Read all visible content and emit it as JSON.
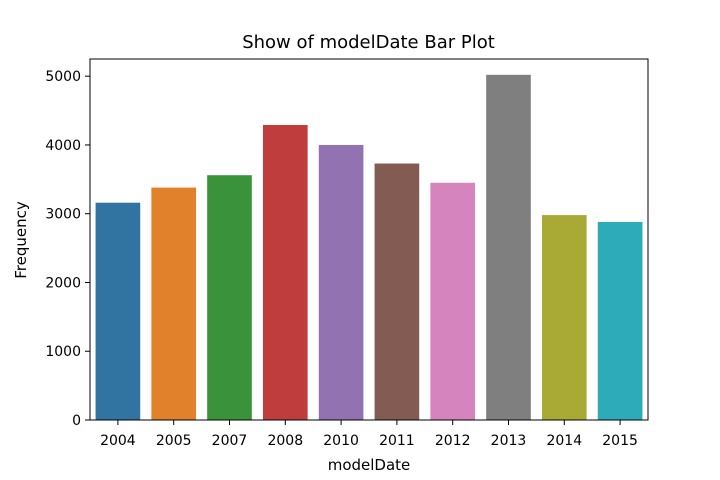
{
  "chart_data": {
    "type": "bar",
    "title": "Show of modelDate Bar Plot",
    "xlabel": "modelDate",
    "ylabel": "Frequency",
    "categories": [
      "2004",
      "2005",
      "2007",
      "2008",
      "2010",
      "2011",
      "2012",
      "2013",
      "2014",
      "2015"
    ],
    "values": [
      3160,
      3380,
      3560,
      4290,
      4000,
      3730,
      3450,
      5020,
      2980,
      2880
    ],
    "ylim": [
      0,
      5250
    ],
    "yticks": [
      0,
      1000,
      2000,
      3000,
      4000,
      5000
    ],
    "colors": [
      "#3274a1",
      "#e1812c",
      "#3a923a",
      "#c03d3e",
      "#9372b2",
      "#845b53",
      "#d684bd",
      "#7f7f7f",
      "#a9aa35",
      "#2eabb8"
    ],
    "grid": false,
    "legend": "none"
  }
}
